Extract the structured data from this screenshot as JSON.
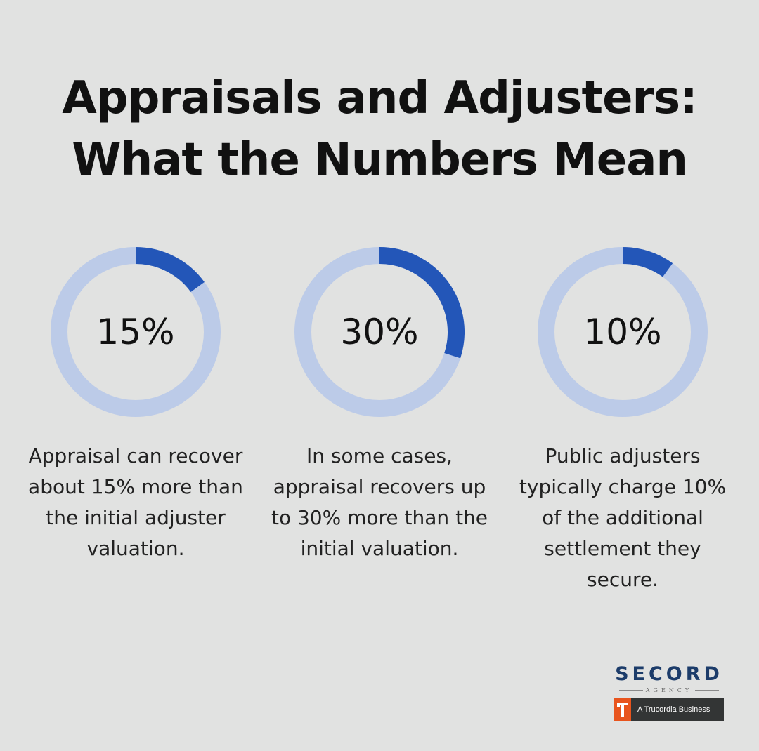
{
  "title": {
    "line1": "Appraisals and Adjusters:",
    "line2": "What the Numbers Mean"
  },
  "colors": {
    "background": "#e1e2e1",
    "ring_track": "#bccbe8",
    "ring_fill": "#2356b8"
  },
  "chart_data": {
    "type": "pie",
    "stats": [
      {
        "value": 15,
        "value_label": "15%",
        "caption": "Appraisal can recover about 15% more than the initial adjuster valuation."
      },
      {
        "value": 30,
        "value_label": "30%",
        "caption": "In some cases, appraisal recovers up to 30% more than the initial valuation."
      },
      {
        "value": 10,
        "value_label": "10%",
        "caption": "Public adjusters typically charge 10% of the additional settlement they secure."
      }
    ]
  },
  "logo": {
    "name": "SECORD",
    "sub": "AGENCY",
    "badge_text": "A Trucordia Business",
    "badge_icon": "trucordia-t-icon"
  }
}
